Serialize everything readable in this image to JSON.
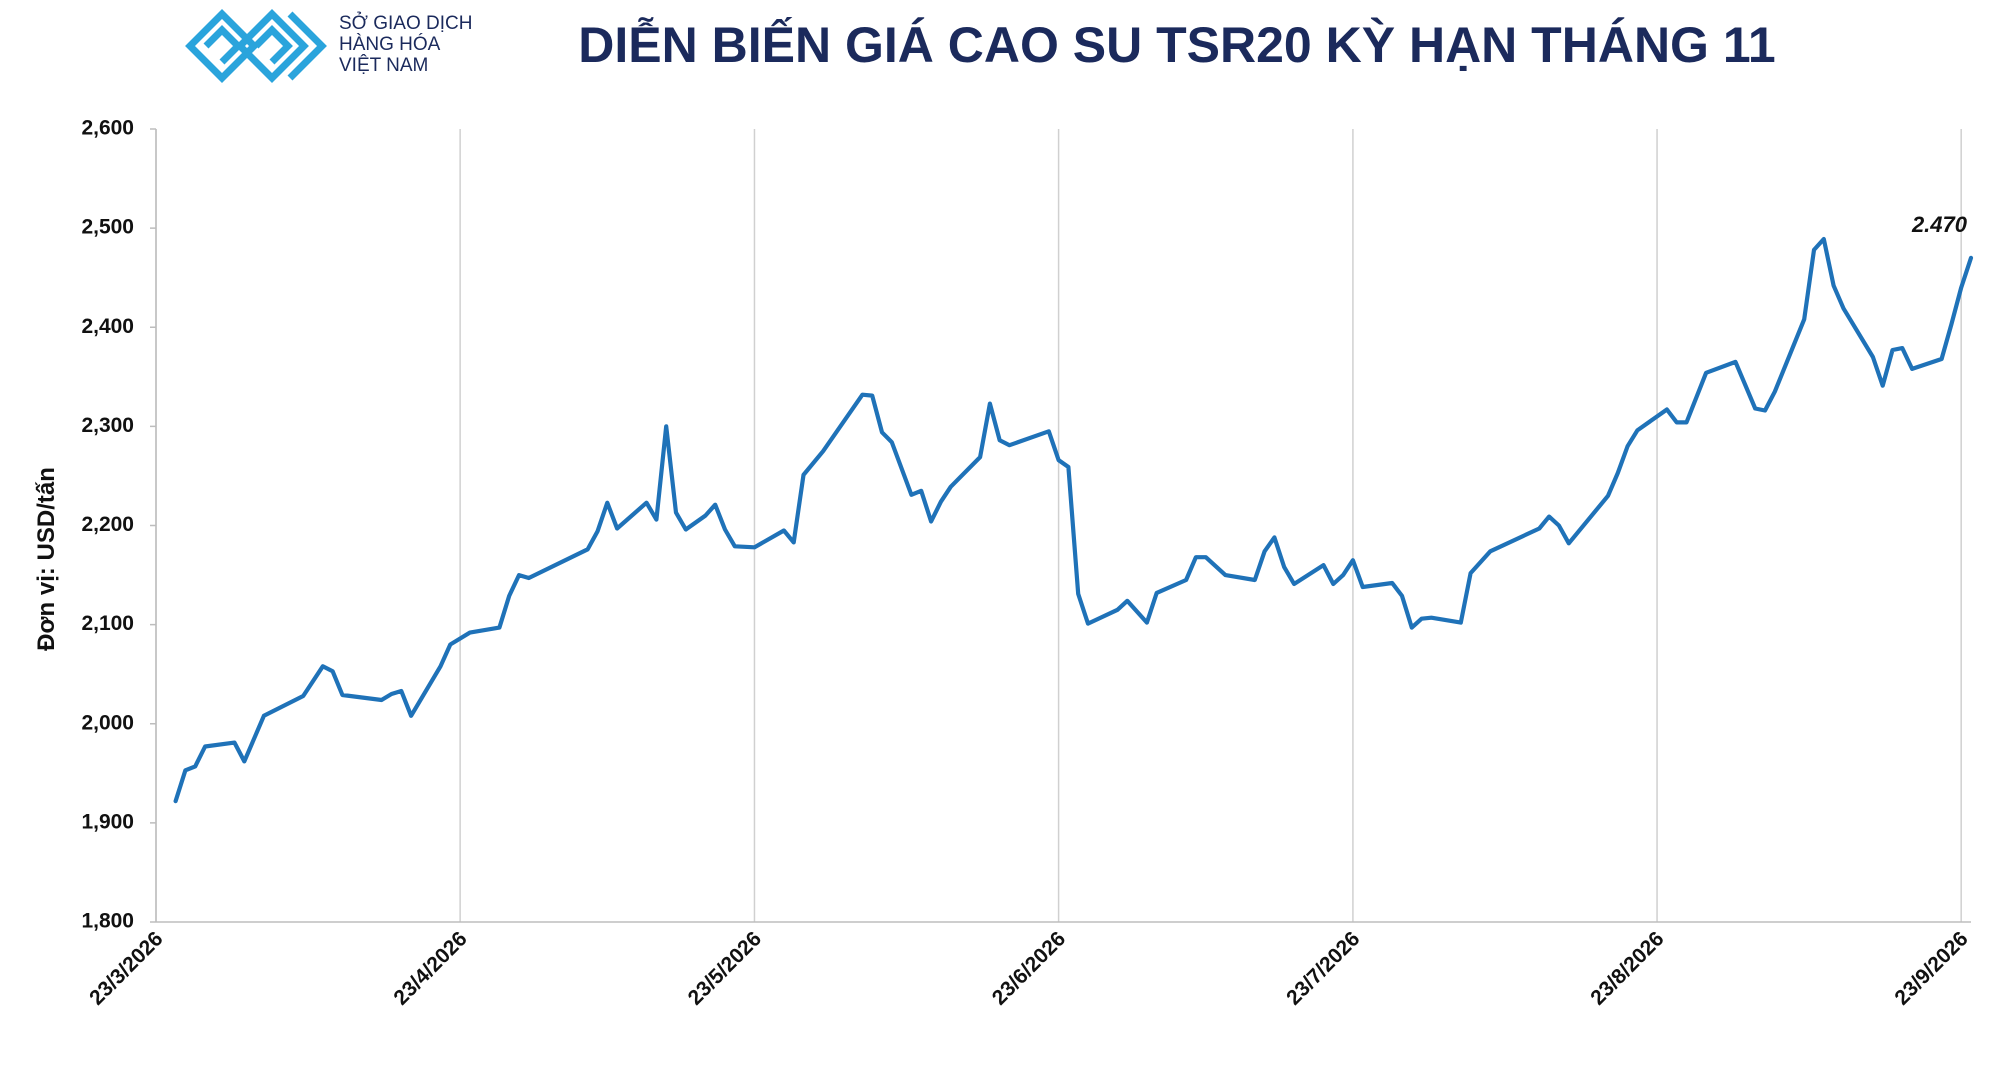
{
  "logo": {
    "lines": [
      "SỞ GIAO DỊCH",
      "HÀNG HÓA",
      "VIỆT NAM"
    ]
  },
  "chart_data": {
    "type": "line",
    "title": "DIỄN BIẾN GIÁ CAO SU TSR20 KỲ HẠN THÁNG 11",
    "y_label": "Đơn vị: USD/tấn",
    "ylim": [
      1800,
      2600
    ],
    "yticks": [
      {
        "value": 1800,
        "label": "1,800"
      },
      {
        "value": 1900,
        "label": "1,900"
      },
      {
        "value": 2000,
        "label": "2,000"
      },
      {
        "value": 2100,
        "label": "2,100"
      },
      {
        "value": 2200,
        "label": "2,200"
      },
      {
        "value": 2300,
        "label": "2,300"
      },
      {
        "value": 2400,
        "label": "2,400"
      },
      {
        "value": 2500,
        "label": "2,500"
      },
      {
        "value": 2600,
        "label": "2,600"
      }
    ],
    "xlim": [
      "2026-03-23",
      "2026-09-24"
    ],
    "xticks": [
      {
        "value": "2026-03-23",
        "label": "23/3/2026"
      },
      {
        "value": "2026-04-23",
        "label": "23/4/2026"
      },
      {
        "value": "2026-05-23",
        "label": "23/5/2026"
      },
      {
        "value": "2026-06-23",
        "label": "23/6/2026"
      },
      {
        "value": "2026-07-23",
        "label": "23/7/2026"
      },
      {
        "value": "2026-08-23",
        "label": "23/8/2026"
      },
      {
        "value": "2026-09-23",
        "label": "23/9/2026"
      }
    ],
    "grid": "x",
    "series": [
      {
        "color": "#1f72b8",
        "x": [
          "2026-03-25",
          "2026-03-26",
          "2026-03-27",
          "2026-03-28",
          "2026-03-31",
          "2026-04-01",
          "2026-04-03",
          "2026-04-07",
          "2026-04-09",
          "2026-04-10",
          "2026-04-11",
          "2026-04-15",
          "2026-04-16",
          "2026-04-17",
          "2026-04-18",
          "2026-04-21",
          "2026-04-22",
          "2026-04-24",
          "2026-04-27",
          "2026-04-28",
          "2026-04-29",
          "2026-04-30",
          "2026-05-06",
          "2026-05-07",
          "2026-05-08",
          "2026-05-09",
          "2026-05-12",
          "2026-05-13",
          "2026-05-14",
          "2026-05-15",
          "2026-05-16",
          "2026-05-18",
          "2026-05-19",
          "2026-05-20",
          "2026-05-21",
          "2026-05-23",
          "2026-05-26",
          "2026-05-27",
          "2026-05-28",
          "2026-05-30",
          "2026-06-03",
          "2026-06-04",
          "2026-06-05",
          "2026-06-06",
          "2026-06-08",
          "2026-06-09",
          "2026-06-10",
          "2026-06-11",
          "2026-06-12",
          "2026-06-15",
          "2026-06-16",
          "2026-06-17",
          "2026-06-18",
          "2026-06-22",
          "2026-06-23",
          "2026-06-24",
          "2026-06-25",
          "2026-06-26",
          "2026-06-29",
          "2026-06-30",
          "2026-07-02",
          "2026-07-03",
          "2026-07-06",
          "2026-07-07",
          "2026-07-08",
          "2026-07-10",
          "2026-07-13",
          "2026-07-14",
          "2026-07-15",
          "2026-07-16",
          "2026-07-17",
          "2026-07-20",
          "2026-07-21",
          "2026-07-22",
          "2026-07-23",
          "2026-07-24",
          "2026-07-27",
          "2026-07-28",
          "2026-07-29",
          "2026-07-30",
          "2026-07-31",
          "2026-08-03",
          "2026-08-04",
          "2026-08-06",
          "2026-08-11",
          "2026-08-12",
          "2026-08-13",
          "2026-08-14",
          "2026-08-17",
          "2026-08-18",
          "2026-08-19",
          "2026-08-20",
          "2026-08-21",
          "2026-08-24",
          "2026-08-25",
          "2026-08-26",
          "2026-08-28",
          "2026-08-31",
          "2026-09-02",
          "2026-09-03",
          "2026-09-04",
          "2026-09-07",
          "2026-09-08",
          "2026-09-09",
          "2026-09-10",
          "2026-09-11",
          "2026-09-14",
          "2026-09-15",
          "2026-09-16",
          "2026-09-17",
          "2026-09-18",
          "2026-09-21",
          "2026-09-22",
          "2026-09-23",
          "2026-09-24"
        ],
        "values": [
          1922,
          1953,
          1957,
          1977,
          1981,
          1962,
          2008,
          2028,
          2058,
          2053,
          2029,
          2024,
          2030,
          2033,
          2008,
          2058,
          2080,
          2092,
          2097,
          2129,
          2150,
          2147,
          2176,
          2194,
          2223,
          2197,
          2223,
          2206,
          2300,
          2213,
          2196,
          2210,
          2221,
          2196,
          2179,
          2178,
          2195,
          2183,
          2251,
          2275,
          2332,
          2331,
          2294,
          2284,
          2231,
          2235,
          2204,
          2224,
          2239,
          2269,
          2323,
          2286,
          2281,
          2295,
          2266,
          2259,
          2131,
          2101,
          2115,
          2124,
          2102,
          2132,
          2145,
          2168,
          2168,
          2150,
          2145,
          2174,
          2188,
          2158,
          2141,
          2160,
          2141,
          2150,
          2165,
          2138,
          2142,
          2129,
          2097,
          2106,
          2107,
          2102,
          2152,
          2174,
          2197,
          2209,
          2200,
          2182,
          2218,
          2230,
          2253,
          2280,
          2296,
          2317,
          2304,
          2304,
          2354,
          2365,
          2318,
          2316,
          2335,
          2408,
          2478,
          2489,
          2442,
          2419,
          2370,
          2341,
          2377,
          2379,
          2358,
          2368,
          2403,
          2440,
          2470
        ],
        "value_labels": [
          null,
          null,
          null,
          null,
          null,
          null,
          null,
          null,
          null,
          null,
          null,
          null,
          null,
          null,
          null,
          null,
          null,
          null,
          null,
          null,
          null,
          null,
          null,
          null,
          null,
          null,
          null,
          null,
          null,
          null,
          null,
          null,
          null,
          null,
          null,
          null,
          null,
          null,
          null,
          null,
          null,
          null,
          null,
          null,
          null,
          null,
          null,
          null,
          null,
          null,
          null,
          null,
          null,
          null,
          null,
          null,
          null,
          null,
          null,
          null,
          null,
          null,
          null,
          null,
          null,
          null,
          null,
          null,
          null,
          null,
          null,
          null,
          null,
          null,
          null,
          null,
          null,
          null,
          null,
          null,
          null,
          null,
          null,
          null,
          null,
          null,
          null,
          null,
          null,
          null,
          null,
          null,
          null,
          null,
          null,
          null,
          null,
          null,
          null,
          null,
          null,
          null,
          null,
          null,
          null,
          null,
          null,
          null,
          null,
          null,
          null,
          null,
          null,
          null,
          "2.470"
        ]
      }
    ]
  }
}
